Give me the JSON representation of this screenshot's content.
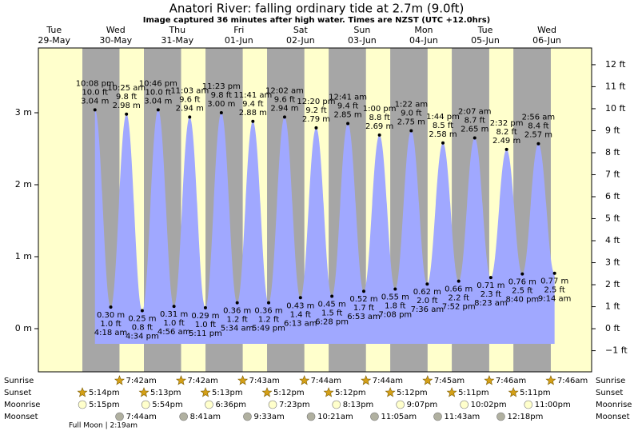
{
  "chart_data": {
    "type": "area",
    "title": "Anatori River: falling  ordinary tide at 2.7m (9.0ft)",
    "subtitle": "Image captured 36 minutes after high water. Times are NZST (UTC +12.0hrs)",
    "ylim": [
      -0.6,
      3.9
    ],
    "yticks": [
      {
        "value": 0,
        "label": "0 m"
      },
      {
        "value": 1,
        "label": "1 m"
      },
      {
        "value": 2,
        "label": "2 m"
      },
      {
        "value": 3,
        "label": "3 m"
      }
    ],
    "y2lim": [
      -1.96,
      12.76
    ],
    "y2ticks": [
      {
        "value": -1,
        "label": "−1 ft"
      },
      {
        "value": 0,
        "label": "0 ft"
      },
      {
        "value": 1,
        "label": "1 ft"
      },
      {
        "value": 2,
        "label": "2 ft"
      },
      {
        "value": 3,
        "label": "3 ft"
      },
      {
        "value": 4,
        "label": "4 ft"
      },
      {
        "value": 5,
        "label": "5 ft"
      },
      {
        "value": 6,
        "label": "6 ft"
      },
      {
        "value": 7,
        "label": "7 ft"
      },
      {
        "value": 8,
        "label": "8 ft"
      },
      {
        "value": 9,
        "label": "9 ft"
      },
      {
        "value": 10,
        "label": "10 ft"
      },
      {
        "value": 11,
        "label": "11 ft"
      },
      {
        "value": 12,
        "label": "12 ft"
      }
    ],
    "tide_color": "#a0a8ff",
    "day_color": "#ffffcc",
    "night_color": "#a6a6a6",
    "day_label_color": "#e00000",
    "row_labels": {
      "sunrise": "Sunrise",
      "sunset": "Sunset",
      "moonrise": "Moonrise",
      "moonset": "Moonset"
    },
    "footer": "Full Moon | 2:19am",
    "days": [
      {
        "name": "Tue",
        "date": "29-May",
        "sunset": "5:14pm",
        "moonrise": "5:15pm",
        "tides": [
          {
            "time": "10:08 pm",
            "ft": "10.0 ft",
            "height_m": 3.04,
            "label_m": "3.04 m"
          }
        ]
      },
      {
        "name": "Wed",
        "date": "30-May",
        "sunrise": "7:42am",
        "sunset": "5:13pm",
        "moonrise": "5:54pm",
        "moonset": "7:44am",
        "tides": [
          {
            "time": "4:18 am",
            "ft": "1.0 ft",
            "height_m": 0.3,
            "label_m": "0.30 m"
          },
          {
            "time": "10:25 am",
            "ft": "9.8 ft",
            "height_m": 2.98,
            "label_m": "2.98 m"
          },
          {
            "time": "4:34 pm",
            "ft": "0.8 ft",
            "height_m": 0.25,
            "label_m": "0.25 m"
          },
          {
            "time": "10:46 pm",
            "ft": "10.0 ft",
            "height_m": 3.04,
            "label_m": "3.04 m"
          }
        ]
      },
      {
        "name": "Thu",
        "date": "31-May",
        "sunrise": "7:42am",
        "sunset": "5:13pm",
        "moonrise": "6:36pm",
        "moonset": "8:41am",
        "tides": [
          {
            "time": "4:56 am",
            "ft": "1.0 ft",
            "height_m": 0.31,
            "label_m": "0.31 m"
          },
          {
            "time": "11:03 am",
            "ft": "9.6 ft",
            "height_m": 2.94,
            "label_m": "2.94 m"
          },
          {
            "time": "5:11 pm",
            "ft": "1.0 ft",
            "height_m": 0.29,
            "label_m": "0.29 m"
          },
          {
            "time": "11:23 pm",
            "ft": "9.8 ft",
            "height_m": 3.0,
            "label_m": "3.00 m"
          }
        ]
      },
      {
        "name": "Fri",
        "date": "01-Jun",
        "sunrise": "7:43am",
        "sunset": "5:12pm",
        "moonrise": "7:23pm",
        "moonset": "9:33am",
        "tides": [
          {
            "time": "5:34 am",
            "ft": "1.2 ft",
            "height_m": 0.36,
            "label_m": "0.36 m"
          },
          {
            "time": "11:41 am",
            "ft": "9.4 ft",
            "height_m": 2.88,
            "label_m": "2.88 m"
          },
          {
            "time": "5:49 pm",
            "ft": "1.2 ft",
            "height_m": 0.36,
            "label_m": "0.36 m"
          }
        ]
      },
      {
        "name": "Sat",
        "date": "02-Jun",
        "sunrise": "7:44am",
        "sunset": "5:12pm",
        "moonrise": "8:13pm",
        "moonset": "10:21am",
        "tides": [
          {
            "time": "12:02 am",
            "ft": "9.6 ft",
            "height_m": 2.94,
            "label_m": "2.94 m"
          },
          {
            "time": "6:13 am",
            "ft": "1.4 ft",
            "height_m": 0.43,
            "label_m": "0.43 m"
          },
          {
            "time": "12:20 pm",
            "ft": "9.2 ft",
            "height_m": 2.79,
            "label_m": "2.79 m"
          },
          {
            "time": "6:28 pm",
            "ft": "1.5 ft",
            "height_m": 0.45,
            "label_m": "0.45 m"
          }
        ]
      },
      {
        "name": "Sun",
        "date": "03-Jun",
        "sunrise": "7:44am",
        "sunset": "5:12pm",
        "moonrise": "9:07pm",
        "moonset": "11:05am",
        "tides": [
          {
            "time": "12:41 am",
            "ft": "9.4 ft",
            "height_m": 2.85,
            "label_m": "2.85 m"
          },
          {
            "time": "6:53 am",
            "ft": "1.7 ft",
            "height_m": 0.52,
            "label_m": "0.52 m"
          },
          {
            "time": "1:00 pm",
            "ft": "8.8 ft",
            "height_m": 2.69,
            "label_m": "2.69 m"
          },
          {
            "time": "7:08 pm",
            "ft": "1.8 ft",
            "height_m": 0.55,
            "label_m": "0.55 m"
          }
        ]
      },
      {
        "name": "Mon",
        "date": "04-Jun",
        "sunrise": "7:45am",
        "sunset": "5:11pm",
        "moonrise": "10:02pm",
        "moonset": "11:43am",
        "tides": [
          {
            "time": "1:22 am",
            "ft": "9.0 ft",
            "height_m": 2.75,
            "label_m": "2.75 m"
          },
          {
            "time": "7:36 am",
            "ft": "2.0 ft",
            "height_m": 0.62,
            "label_m": "0.62 m"
          },
          {
            "time": "1:44 pm",
            "ft": "8.5 ft",
            "height_m": 2.58,
            "label_m": "2.58 m"
          },
          {
            "time": "7:52 pm",
            "ft": "2.2 ft",
            "height_m": 0.66,
            "label_m": "0.66 m"
          }
        ]
      },
      {
        "name": "Tue",
        "date": "05-Jun",
        "sunrise": "7:46am",
        "sunset": "5:11pm",
        "moonrise": "11:00pm",
        "moonset": "12:18pm",
        "tides": [
          {
            "time": "2:07 am",
            "ft": "8.7 ft",
            "height_m": 2.65,
            "label_m": "2.65 m"
          },
          {
            "time": "8:23 am",
            "ft": "2.3 ft",
            "height_m": 0.71,
            "label_m": "0.71 m"
          },
          {
            "time": "2:32 pm",
            "ft": "8.2 ft",
            "height_m": 2.49,
            "label_m": "2.49 m"
          },
          {
            "time": "8:40 pm",
            "ft": "2.5 ft",
            "height_m": 0.76,
            "label_m": "0.76 m"
          }
        ]
      },
      {
        "name": "Wed",
        "date": "06-Jun",
        "sunrise": "7:46am",
        "tides": [
          {
            "time": "2:56 am",
            "ft": "8.4 ft",
            "height_m": 2.57,
            "label_m": "2.57 m"
          },
          {
            "time": "9:14 am",
            "ft": "2.5 ft",
            "height_m": 0.77,
            "label_m": "0.77 m"
          }
        ]
      }
    ]
  }
}
